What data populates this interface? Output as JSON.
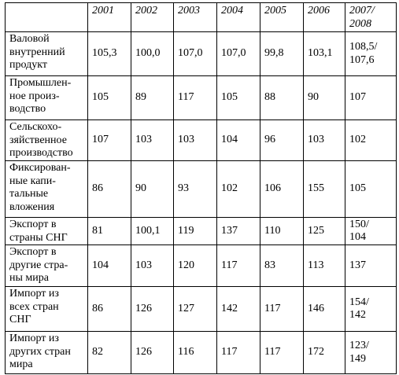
{
  "table": {
    "years": [
      "2001",
      "2002",
      "2003",
      "2004",
      "2005",
      "2006",
      "2007/\n2008"
    ],
    "rows": [
      {
        "label": "Валовой\nвнутренний\nпродукт",
        "values": [
          "105,3",
          "100,0",
          "107,0",
          "107,0",
          "99,8",
          "103,1",
          "108,5/\n107,6"
        ]
      },
      {
        "label": "Промышлен-\nное произ-\nводство",
        "values": [
          "105",
          "89",
          "117",
          "105",
          "88",
          "90",
          "107"
        ]
      },
      {
        "label": "Сельскохо-\nзяйственное\nпроизводство",
        "values": [
          "107",
          "103",
          "103",
          "104",
          "96",
          "103",
          "102"
        ]
      },
      {
        "label": "Фиксирован-\nные капи-\nтальные\nвложения",
        "values": [
          "86",
          "90",
          "93",
          "102",
          "106",
          "155",
          "105"
        ]
      },
      {
        "label": "Экспорт в\nстраны СНГ",
        "values": [
          "81",
          "100,1",
          "119",
          "137",
          "110",
          "125",
          "150/\n104"
        ]
      },
      {
        "label": "Экспорт в\nдругие стра-\nны мира",
        "values": [
          "104",
          "103",
          "120",
          "117",
          "83",
          "113",
          "137"
        ]
      },
      {
        "label": "Импорт из\nвсех стран\nСНГ",
        "values": [
          "86",
          "126",
          "127",
          "142",
          "117",
          "146",
          "154/\n142"
        ]
      },
      {
        "label": "Импорт из\nдругих стран\nмира",
        "values": [
          "82",
          "126",
          "116",
          "117",
          "117",
          "172",
          "123/\n149"
        ]
      }
    ]
  }
}
